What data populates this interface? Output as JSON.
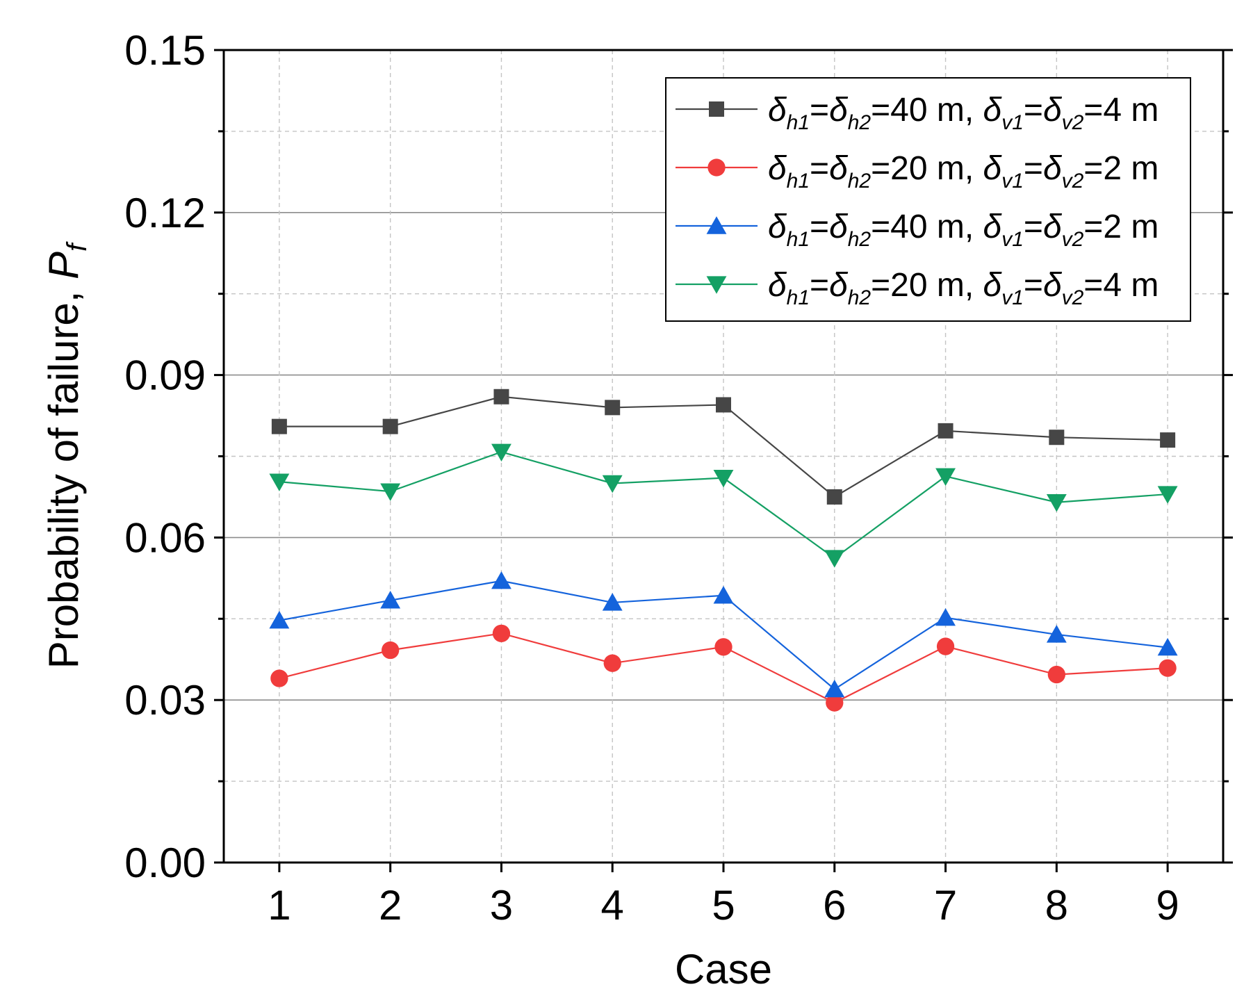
{
  "chart_data": {
    "type": "line",
    "title": "",
    "xlabel": "Case",
    "ylabel": "Probability of failure, ",
    "ylabel_symbol": "P",
    "ylabel_subscript": "f",
    "categories": [
      "1",
      "2",
      "3",
      "4",
      "5",
      "6",
      "7",
      "8",
      "9"
    ],
    "x": [
      1,
      2,
      3,
      4,
      5,
      6,
      7,
      8,
      9
    ],
    "xlim": [
      0.5,
      9.5
    ],
    "ylim": [
      0,
      0.15
    ],
    "yticks": [
      0.0,
      0.03,
      0.06,
      0.09,
      0.12,
      0.15
    ],
    "ytick_labels": [
      "0.00",
      "0.03",
      "0.06",
      "0.09",
      "0.12",
      "0.15"
    ],
    "minor_yticks": [
      0.015,
      0.045,
      0.075,
      0.105,
      0.135
    ],
    "grid": true,
    "legend_position": "top-right",
    "series": [
      {
        "name": "δh1=δh2=40 m, δv1=δv2=4 m",
        "label_parts": [
          "δ",
          "h1",
          "=",
          "δ",
          "h2",
          "=40 m, ",
          "δ",
          "v1",
          "=",
          "δ",
          "v2",
          "=4 m"
        ],
        "color": "#464646",
        "marker": "square",
        "values": [
          0.0805,
          0.0805,
          0.086,
          0.084,
          0.0845,
          0.0675,
          0.0797,
          0.0785,
          0.078
        ]
      },
      {
        "name": "δh1=δh2=20 m, δv1=δv2=2 m",
        "label_parts": [
          "δ",
          "h1",
          "=",
          "δ",
          "h2",
          "=20 m, ",
          "δ",
          "v1",
          "=",
          "δ",
          "v2",
          "=2 m"
        ],
        "color": "#f03c3c",
        "marker": "circle",
        "values": [
          0.034,
          0.0392,
          0.0423,
          0.0368,
          0.0398,
          0.0295,
          0.0399,
          0.0347,
          0.0359
        ]
      },
      {
        "name": "δh1=δh2=40 m, δv1=δv2=2 m",
        "label_parts": [
          "δ",
          "h1",
          "=",
          "δ",
          "h2",
          "=40 m, ",
          "δ",
          "v1",
          "=",
          "δ",
          "v2",
          "=2 m"
        ],
        "color": "#1463dc",
        "marker": "triangle-up",
        "values": [
          0.0447,
          0.0484,
          0.052,
          0.048,
          0.0493,
          0.032,
          0.0452,
          0.0421,
          0.0397
        ]
      },
      {
        "name": "δh1=δh2=20 m, δv1=δv2=4 m",
        "label_parts": [
          "δ",
          "h1",
          "=",
          "δ",
          "h2",
          "=20 m, ",
          "δ",
          "v1",
          "=",
          "δ",
          "v2",
          "=4 m"
        ],
        "color": "#14a064",
        "marker": "triangle-down",
        "values": [
          0.0703,
          0.0685,
          0.0758,
          0.07,
          0.071,
          0.0562,
          0.0713,
          0.0665,
          0.068
        ]
      }
    ]
  }
}
